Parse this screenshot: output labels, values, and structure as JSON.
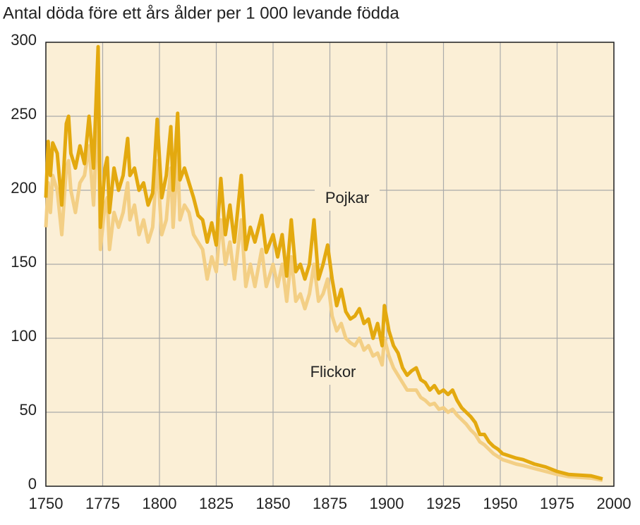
{
  "chart_data": {
    "type": "line",
    "title": "Antal döda före ett års ålder per 1 000 levande födda",
    "x": [
      1750,
      1751,
      1752,
      1753,
      1755,
      1757,
      1759,
      1760,
      1761,
      1763,
      1765,
      1767,
      1769,
      1771,
      1773,
      1774,
      1776,
      1777,
      1778,
      1780,
      1782,
      1784,
      1786,
      1787,
      1789,
      1791,
      1793,
      1795,
      1797,
      1799,
      1801,
      1803,
      1805,
      1806,
      1808,
      1809,
      1811,
      1813,
      1815,
      1817,
      1819,
      1821,
      1823,
      1825,
      1827,
      1829,
      1831,
      1833,
      1836,
      1838,
      1840,
      1842,
      1845,
      1847,
      1850,
      1852,
      1854,
      1856,
      1858,
      1860,
      1862,
      1864,
      1866,
      1868,
      1870,
      1872,
      1874,
      1876,
      1878,
      1880,
      1882,
      1884,
      1886,
      1888,
      1890,
      1892,
      1894,
      1896,
      1898,
      1899,
      1901,
      1903,
      1905,
      1907,
      1909,
      1911,
      1913,
      1915,
      1917,
      1919,
      1921,
      1923,
      1925,
      1927,
      1929,
      1931,
      1933,
      1935,
      1937,
      1939,
      1941,
      1943,
      1945,
      1947,
      1949,
      1951,
      1953,
      1955,
      1957,
      1960,
      1965,
      1970,
      1975,
      1980,
      1985,
      1990,
      1995
    ],
    "series": [
      {
        "name": "Flickor",
        "color": "#f3cf85",
        "values": [
          175,
          205,
          185,
          210,
          200,
          170,
          215,
          220,
          200,
          185,
          205,
          210,
          230,
          190,
          260,
          160,
          190,
          195,
          160,
          185,
          175,
          185,
          205,
          180,
          190,
          170,
          180,
          165,
          175,
          220,
          170,
          180,
          215,
          175,
          225,
          180,
          190,
          185,
          170,
          165,
          160,
          140,
          155,
          145,
          180,
          150,
          165,
          140,
          180,
          135,
          150,
          135,
          160,
          135,
          150,
          135,
          150,
          125,
          155,
          125,
          130,
          120,
          130,
          150,
          125,
          130,
          140,
          115,
          105,
          110,
          100,
          97,
          95,
          100,
          92,
          95,
          88,
          90,
          82,
          100,
          88,
          80,
          75,
          70,
          65,
          65,
          65,
          60,
          58,
          55,
          56,
          52,
          53,
          50,
          52,
          48,
          45,
          42,
          38,
          35,
          30,
          28,
          25,
          22,
          20,
          18,
          17,
          16,
          15,
          14,
          12,
          10,
          8,
          6.5,
          6,
          5.5,
          4
        ]
      },
      {
        "name": "Pojkar",
        "color": "#e3a90f",
        "values": [
          195,
          233,
          210,
          232,
          225,
          190,
          245,
          250,
          225,
          215,
          230,
          218,
          250,
          215,
          297,
          175,
          215,
          222,
          185,
          215,
          200,
          210,
          235,
          210,
          215,
          200,
          205,
          190,
          198,
          248,
          195,
          210,
          243,
          200,
          252,
          207,
          215,
          205,
          195,
          183,
          180,
          165,
          178,
          163,
          208,
          170,
          190,
          165,
          210,
          160,
          175,
          165,
          183,
          158,
          170,
          155,
          170,
          142,
          180,
          145,
          150,
          140,
          150,
          180,
          140,
          150,
          163,
          140,
          122,
          133,
          118,
          113,
          115,
          120,
          110,
          113,
          100,
          110,
          95,
          122,
          105,
          95,
          90,
          80,
          75,
          78,
          80,
          72,
          70,
          65,
          68,
          63,
          65,
          62,
          65,
          58,
          53,
          50,
          47,
          43,
          35,
          35,
          30,
          27,
          25,
          22,
          21,
          20,
          19,
          18,
          15,
          13,
          10,
          8,
          7.5,
          7,
          5
        ]
      }
    ],
    "xlim": [
      1750,
      2000
    ],
    "xticks": [
      1750,
      1775,
      1800,
      1825,
      1850,
      1875,
      1900,
      1925,
      1950,
      1975,
      2000
    ],
    "ylim": [
      0,
      300
    ],
    "yticks": [
      0,
      50,
      100,
      150,
      200,
      250,
      300
    ],
    "grid": true
  }
}
